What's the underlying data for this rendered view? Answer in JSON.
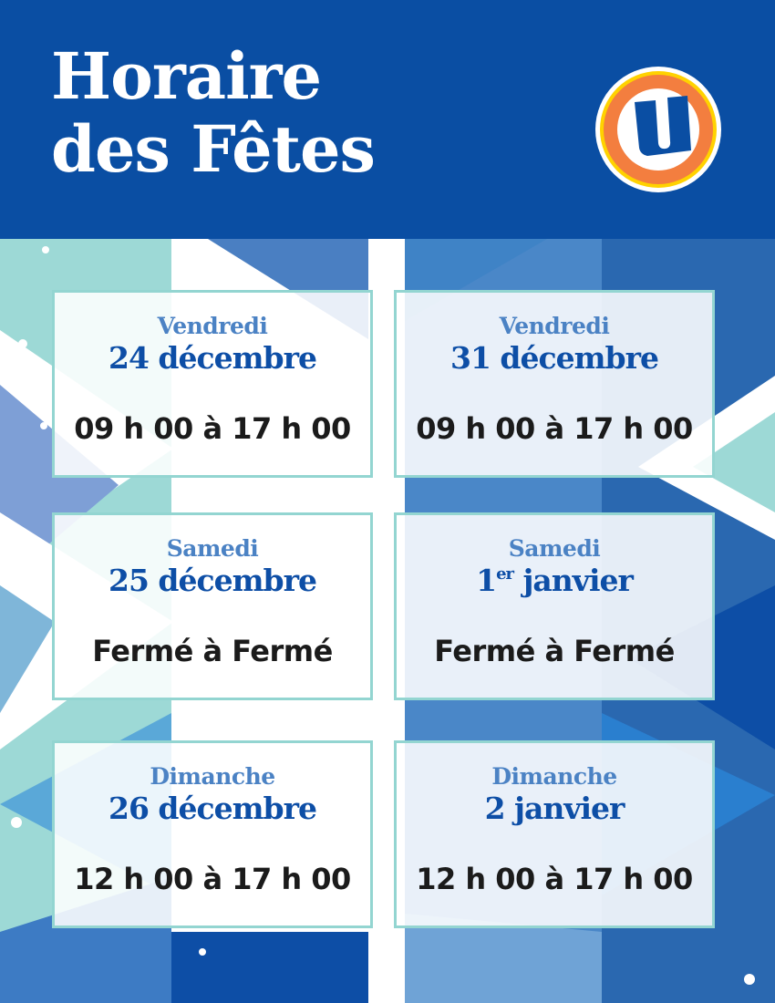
{
  "header": {
    "title_line1": "Horaire",
    "title_line2": "des Fêtes",
    "logo_letter": "U"
  },
  "colors": {
    "brand_blue": "#0a4ea3",
    "logo_orange": "#f37e3f",
    "logo_yellow": "#ffd200",
    "card_border": "#93d5d1",
    "day_color": "#4b82c4"
  },
  "schedule": [
    {
      "day": "Vendredi",
      "date": "24 décembre",
      "hours": "09 h 00 à 17 h 00"
    },
    {
      "day": "Vendredi",
      "date": "31 décembre",
      "hours": "09 h 00 à 17 h 00"
    },
    {
      "day": "Samedi",
      "date": "25 décembre",
      "hours": "Fermé à Fermé"
    },
    {
      "day": "Samedi",
      "date_num": "1",
      "date_sup": "er",
      "date_rest": " janvier",
      "hours": "Fermé à Fermé"
    },
    {
      "day": "Dimanche",
      "date": "26 décembre",
      "hours": "12 h 00 à 17 h 00"
    },
    {
      "day": "Dimanche",
      "date": "2 janvier",
      "hours": "12 h 00 à 17 h 00"
    }
  ]
}
